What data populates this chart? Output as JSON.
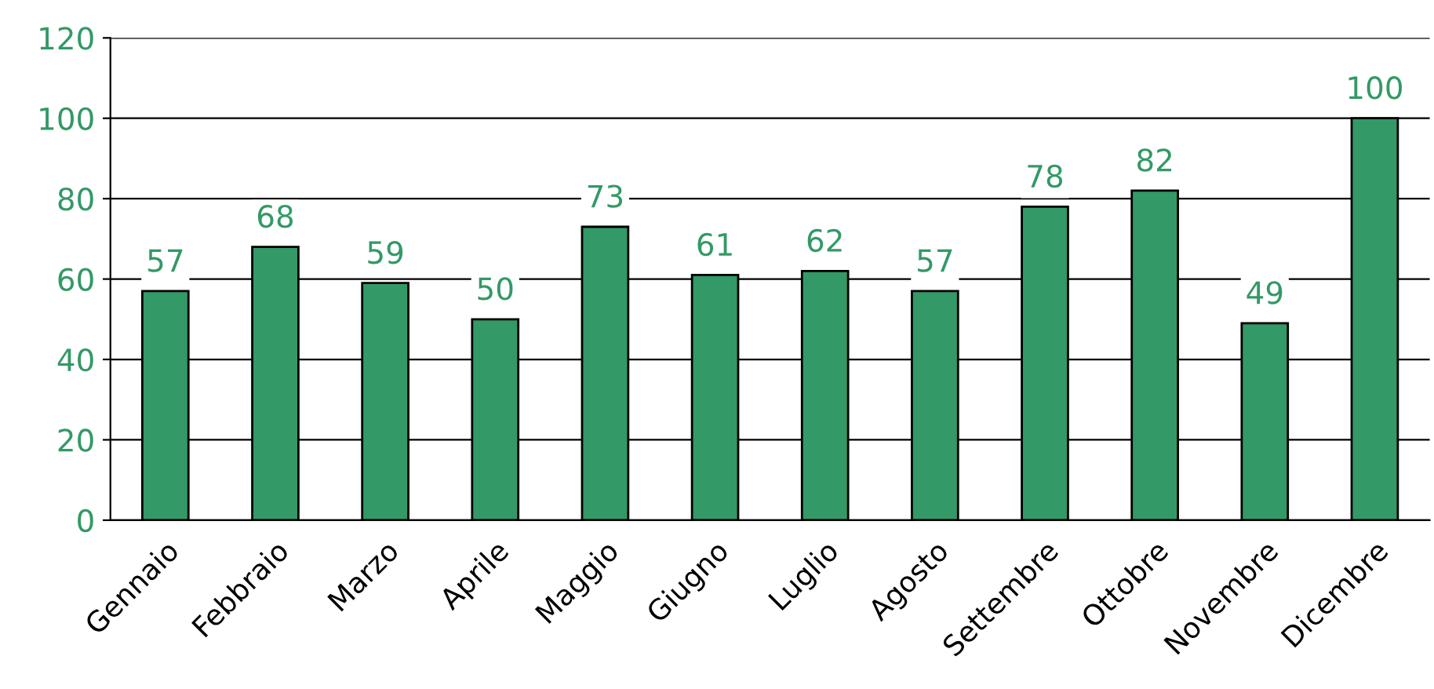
{
  "chart_data": {
    "type": "bar",
    "categories": [
      "Gennaio",
      "Febbraio",
      "Marzo",
      "Aprile",
      "Maggio",
      "Giugno",
      "Luglio",
      "Agosto",
      "Settembre",
      "Ottobre",
      "Novembre",
      "Dicembre"
    ],
    "values": [
      57,
      68,
      59,
      50,
      73,
      61,
      62,
      57,
      78,
      82,
      49,
      100
    ],
    "color": "#339966",
    "ylim": [
      0,
      120
    ],
    "yticks": [
      0,
      20,
      40,
      60,
      80,
      100,
      120
    ],
    "grid": "y",
    "data_labels": true
  }
}
